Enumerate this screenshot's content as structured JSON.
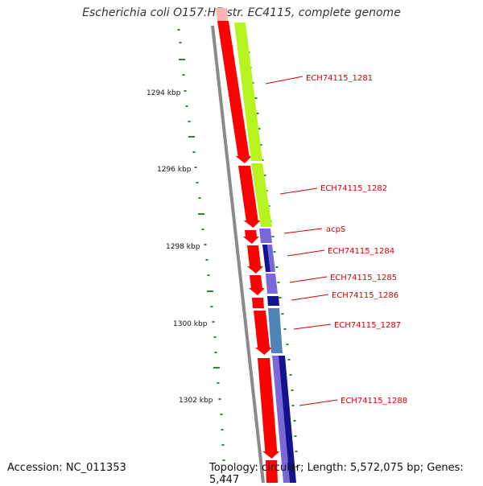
{
  "title": "Escherichia coli O157:H7 str. EC4115, complete genome",
  "footer": {
    "accession": "Accession: NC_011353",
    "topology": "Topology: circular; Length: 5,572,075 bp; Genes: 5,447"
  },
  "colors": {
    "background": "#ffffff",
    "backbone": "#8a8a8a",
    "cds_strand": "#ff0000",
    "tick": "#2e8b2e",
    "label": "#d40000",
    "feature_green": "#b7f31f",
    "feature_purple": "#7a68d8",
    "feature_navy": "#131390",
    "feature_steel": "#4e83b8"
  },
  "scale": {
    "unit": "kbp",
    "labels": [
      {
        "text": "1294 kbp",
        "kbp": 1294
      },
      {
        "text": "1296 kbp",
        "kbp": 1296
      },
      {
        "text": "1298 kbp",
        "kbp": 1298
      },
      {
        "text": "1300 kbp",
        "kbp": 1300
      },
      {
        "text": "1302 kbp",
        "kbp": 1302
      }
    ]
  },
  "genes": [
    {
      "name": "ECH74115_1281",
      "color": "feature_green"
    },
    {
      "name": "ECH74115_1282",
      "color": "feature_green"
    },
    {
      "name": "acpS",
      "color": "feature_purple"
    },
    {
      "name": "ECH74115_1284",
      "color": "feature_navy"
    },
    {
      "name": "ECH74115_1285",
      "color": "feature_purple"
    },
    {
      "name": "ECH74115_1286",
      "color": "feature_navy"
    },
    {
      "name": "ECH74115_1287",
      "color": "feature_steel"
    },
    {
      "name": "ECH74115_1288",
      "color": "feature_purple"
    }
  ]
}
